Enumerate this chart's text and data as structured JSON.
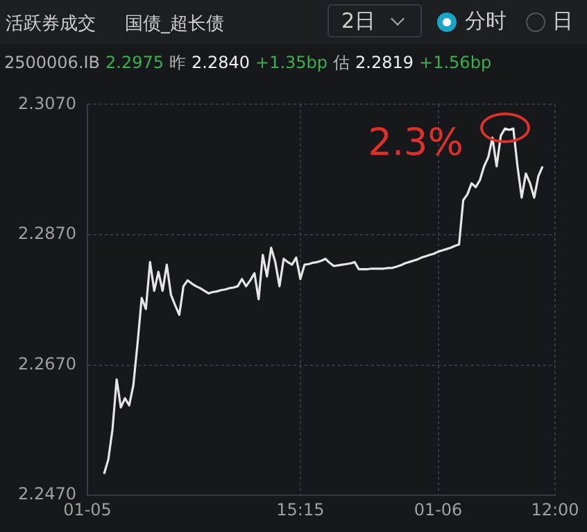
{
  "chart_data": {
    "type": "line",
    "annotations": [
      "活跃券成交",
      "国债_超长债",
      "2日",
      "分时",
      "日",
      "2500006.IB",
      "2.2975",
      "昨",
      "2.2840",
      "+1.35bp",
      "估",
      "2.2819",
      "+1.56bp",
      "2.3%"
    ],
    "categories": [
      "01-05",
      null,
      null,
      null,
      null,
      null,
      null,
      null,
      null,
      null,
      null,
      null,
      null,
      null,
      null,
      null,
      null,
      null,
      null,
      null,
      null,
      null,
      null,
      null,
      null,
      null,
      null,
      null,
      null,
      null,
      null,
      null,
      null,
      null,
      null,
      null,
      null,
      null,
      null,
      null,
      null,
      null,
      null,
      null,
      null,
      null,
      null,
      null,
      null,
      null,
      null,
      "15:15",
      null,
      null,
      null,
      null,
      null,
      null,
      null,
      null,
      null,
      null,
      null,
      null,
      null,
      null,
      null,
      null,
      null,
      null,
      null,
      null,
      null,
      null,
      null,
      null,
      null,
      null,
      null,
      null,
      null,
      null,
      null,
      null,
      "01-06",
      null,
      null,
      null,
      null,
      null,
      null,
      null,
      null,
      null,
      null,
      null,
      null,
      null,
      null,
      null,
      null,
      null,
      null,
      null,
      null,
      null,
      null,
      null,
      null,
      null,
      null,
      null,
      "12:00"
    ],
    "series": [
      {
        "color": "#e6e6e6",
        "values": [
          null,
          null,
          null,
          null,
          2.2503,
          2.2525,
          2.2571,
          2.2648,
          2.2605,
          2.2619,
          2.2608,
          2.2639,
          2.2703,
          2.2773,
          2.2756,
          2.2828,
          2.2784,
          2.2813,
          2.2784,
          2.2824,
          2.2778,
          2.2762,
          2.2747,
          2.2791,
          2.28,
          2.2795,
          2.2791,
          2.2788,
          2.2784,
          2.278,
          2.2782,
          2.2783,
          2.2785,
          2.2786,
          2.2788,
          2.2789,
          2.2791,
          2.2802,
          2.2791,
          2.28,
          2.2811,
          2.2771,
          2.2839,
          2.2806,
          2.285,
          2.2828,
          2.2791,
          2.2833,
          2.2828,
          2.2824,
          2.2835,
          2.2802,
          2.2824,
          2.2825,
          2.2827,
          2.2828,
          2.283,
          2.2833,
          2.2827,
          2.2822,
          2.2823,
          2.2824,
          2.2825,
          2.2826,
          2.2828,
          2.2817,
          2.2817,
          2.2817,
          2.2818,
          2.2818,
          2.2818,
          2.2818,
          2.2819,
          2.2819,
          2.2821,
          2.2823,
          2.2826,
          2.2828,
          2.283,
          2.2832,
          2.2835,
          2.2837,
          2.2839,
          2.2841,
          2.2844,
          2.2846,
          2.2848,
          2.285,
          2.2853,
          2.2855,
          2.2923,
          2.2932,
          2.2949,
          2.2943,
          2.2954,
          2.2975,
          2.2989,
          2.3019,
          2.2975,
          2.3022,
          2.3033,
          2.3031,
          2.3033,
          2.2975,
          2.2927,
          2.2964,
          2.2949,
          2.2927,
          2.296,
          2.2975,
          null,
          null,
          null
        ]
      }
    ],
    "ylim": [
      2.247,
      2.307
    ],
    "yticks": [
      {
        "value": 2.247,
        "label": "2.2470"
      },
      {
        "value": 2.267,
        "label": "2.2670"
      },
      {
        "value": 2.287,
        "label": "2.2870"
      },
      {
        "value": 2.307,
        "label": "2.3070"
      }
    ],
    "grid": true,
    "legend": false,
    "marker": "none",
    "line_style": "solid"
  }
}
